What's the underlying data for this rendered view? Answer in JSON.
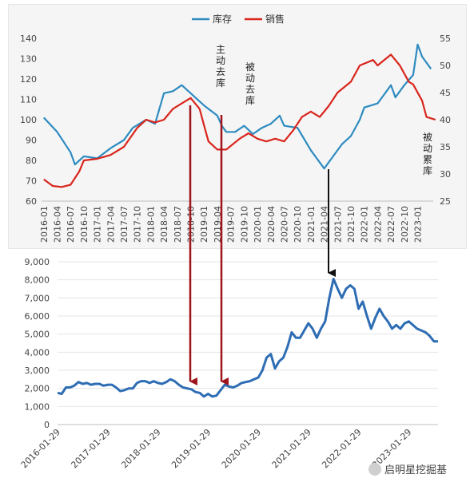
{
  "chart_data": [
    {
      "type": "line",
      "legend": [
        "库存",
        "销售"
      ],
      "legend_position": "top-center",
      "colors": {
        "inventory": "#2E8BC0",
        "sales": "#D9251C"
      },
      "left_axis": {
        "ticks": [
          "140",
          "130",
          "120",
          "110",
          "100",
          "90",
          "80",
          "70",
          "60"
        ],
        "ylim": [
          60,
          140
        ]
      },
      "right_axis": {
        "ticks": [
          "55",
          "50",
          "45",
          "40",
          "35",
          "30",
          "25"
        ],
        "ylim": [
          25,
          55
        ]
      },
      "x_tick_labels": [
        "2016-01",
        "2016-04",
        "2016-07",
        "2016-10",
        "2017-01",
        "2017-04",
        "2017-07",
        "2017-10",
        "2018-01",
        "2018-04",
        "2018-07",
        "2018-10",
        "2019-01",
        "2019-04",
        "2019-07",
        "2019-10",
        "2020-01",
        "2020-04",
        "2020-07",
        "2020-10",
        "2021-01",
        "2021-04",
        "2021-07",
        "2021-10",
        "2022-01",
        "2022-04",
        "2022-07",
        "2022-10",
        "2023-01"
      ],
      "series": [
        {
          "name": "库存",
          "axis": "left",
          "points": [
            [
              "2016-01",
              101
            ],
            [
              "2016-04",
              94
            ],
            [
              "2016-07",
              84
            ],
            [
              "2016-08",
              78
            ],
            [
              "2016-10",
              82
            ],
            [
              "2017-01",
              81
            ],
            [
              "2017-04",
              86
            ],
            [
              "2017-07",
              90
            ],
            [
              "2017-09",
              96
            ],
            [
              "2017-12",
              100
            ],
            [
              "2018-02",
              98
            ],
            [
              "2018-04",
              113
            ],
            [
              "2018-06",
              114
            ],
            [
              "2018-08",
              117
            ],
            [
              "2018-10",
              113
            ],
            [
              "2019-01",
              107
            ],
            [
              "2019-04",
              102
            ],
            [
              "2019-05",
              97
            ],
            [
              "2019-06",
              94
            ],
            [
              "2019-08",
              94
            ],
            [
              "2019-10",
              97
            ],
            [
              "2019-12",
              93
            ],
            [
              "2020-02",
              96
            ],
            [
              "2020-04",
              98
            ],
            [
              "2020-06",
              102
            ],
            [
              "2020-07",
              97
            ],
            [
              "2020-10",
              96
            ],
            [
              "2021-01",
              85
            ],
            [
              "2021-02",
              82
            ],
            [
              "2021-04",
              76
            ],
            [
              "2021-06",
              82
            ],
            [
              "2021-08",
              88
            ],
            [
              "2021-10",
              92
            ],
            [
              "2021-12",
              100
            ],
            [
              "2022-01",
              106
            ],
            [
              "2022-04",
              108
            ],
            [
              "2022-05",
              111
            ],
            [
              "2022-07",
              117
            ],
            [
              "2022-08",
              111
            ],
            [
              "2022-10",
              117
            ],
            [
              "2022-12",
              122
            ],
            [
              "2023-01",
              137
            ],
            [
              "2023-02",
              131
            ],
            [
              "2023-04",
              125
            ]
          ]
        },
        {
          "name": "销售",
          "axis": "right",
          "points": [
            [
              "2016-01",
              29
            ],
            [
              "2016-03",
              27.8
            ],
            [
              "2016-05",
              27.6
            ],
            [
              "2016-07",
              28
            ],
            [
              "2016-09",
              30.5
            ],
            [
              "2016-10",
              32.5
            ],
            [
              "2017-01",
              32.8
            ],
            [
              "2017-04",
              33.5
            ],
            [
              "2017-07",
              35
            ],
            [
              "2017-10",
              38.5
            ],
            [
              "2017-12",
              40
            ],
            [
              "2018-02",
              39.5
            ],
            [
              "2018-04",
              40
            ],
            [
              "2018-06",
              42
            ],
            [
              "2018-08",
              43
            ],
            [
              "2018-10",
              44
            ],
            [
              "2018-12",
              42
            ],
            [
              "2019-01",
              39
            ],
            [
              "2019-02",
              36
            ],
            [
              "2019-04",
              34.5
            ],
            [
              "2019-06",
              34.5
            ],
            [
              "2019-09",
              36.5
            ],
            [
              "2019-11",
              37.5
            ],
            [
              "2020-01",
              36.5
            ],
            [
              "2020-03",
              36
            ],
            [
              "2020-05",
              36.5
            ],
            [
              "2020-07",
              36
            ],
            [
              "2020-09",
              38
            ],
            [
              "2020-11",
              40.5
            ],
            [
              "2021-01",
              41.5
            ],
            [
              "2021-03",
              40.5
            ],
            [
              "2021-05",
              42.5
            ],
            [
              "2021-07",
              45
            ],
            [
              "2021-10",
              47
            ],
            [
              "2021-12",
              50
            ],
            [
              "2022-03",
              51
            ],
            [
              "2022-04",
              50
            ],
            [
              "2022-07",
              52
            ],
            [
              "2022-09",
              50
            ],
            [
              "2022-11",
              47
            ],
            [
              "2022-12",
              46.5
            ],
            [
              "2023-02",
              43.5
            ],
            [
              "2023-03",
              40.5
            ],
            [
              "2023-05",
              40
            ]
          ]
        }
      ],
      "annotations": [
        "主动去库",
        "被动去库",
        "被动累库"
      ]
    },
    {
      "type": "line",
      "color": "#2E6DB4",
      "y_ticks": [
        "9,000",
        "8,000",
        "7,000",
        "6,000",
        "5,000",
        "4,000",
        "3,000",
        "2,000",
        "1,000",
        "0"
      ],
      "ylim": [
        0,
        9000
      ],
      "x_tick_labels": [
        "2016-01-29",
        "2017-01-29",
        "2018-01-29",
        "2019-01-29",
        "2020-01-29",
        "2021-01-29",
        "2022-01-29",
        "2023-01-29"
      ],
      "series": [
        {
          "values": [
            1750,
            1700,
            2050,
            2050,
            2150,
            2350,
            2250,
            2300,
            2200,
            2250,
            2250,
            2150,
            2200,
            2200,
            2050,
            1850,
            1900,
            2000,
            2000,
            2300,
            2400,
            2400,
            2300,
            2400,
            2300,
            2250,
            2350,
            2500,
            2400,
            2200,
            2050,
            2000,
            1950,
            1800,
            1750,
            1550,
            1700,
            1550,
            1600,
            1900,
            2200,
            2100,
            2050,
            2150,
            2300,
            2350,
            2400,
            2500,
            2600,
            3000,
            3700,
            3900,
            3100,
            3500,
            3700,
            4300,
            5100,
            4800,
            4800,
            5200,
            5600,
            5300,
            4800,
            5300,
            5700,
            7000,
            8050,
            7500,
            7000,
            7500,
            7700,
            7500,
            6400,
            6800,
            6000,
            5300,
            5900,
            6400,
            6000,
            5700,
            5300,
            5500,
            5300,
            5600,
            5700,
            5500,
            5300,
            5200,
            5100,
            4900,
            4600,
            4600
          ]
        }
      ]
    }
  ],
  "watermark": "启明星挖掘基"
}
